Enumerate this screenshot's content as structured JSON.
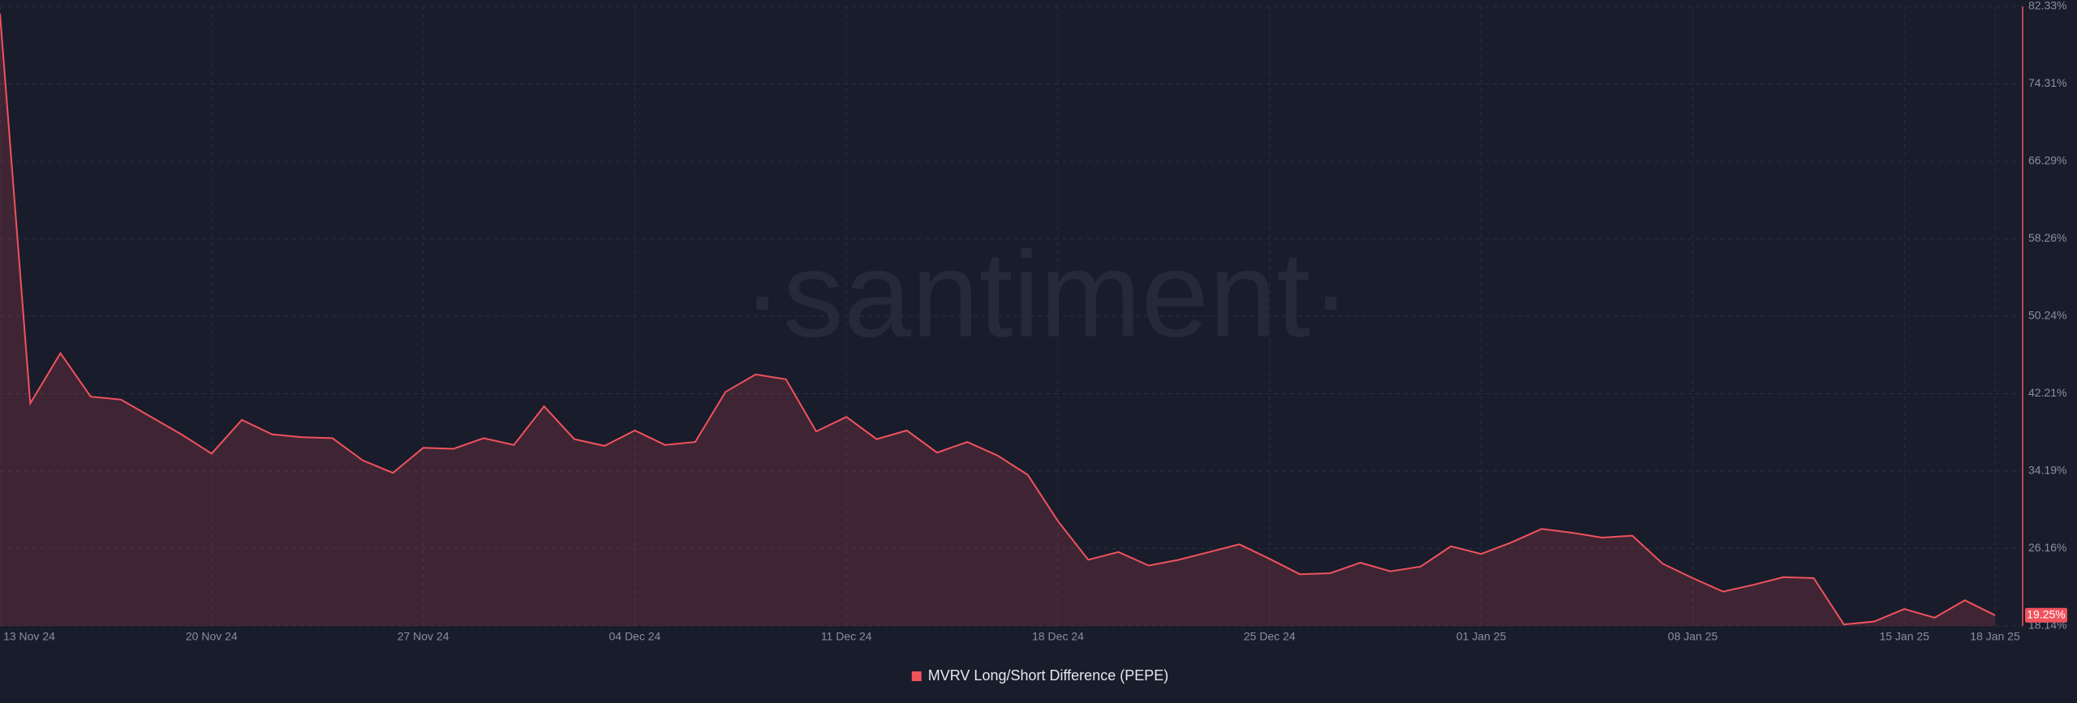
{
  "chart_data": {
    "type": "line",
    "watermark": "·santiment·",
    "x": [
      "2024-11-13",
      "2024-11-14",
      "2024-11-15",
      "2024-11-16",
      "2024-11-17",
      "2024-11-18",
      "2024-11-19",
      "2024-11-20",
      "2024-11-21",
      "2024-11-22",
      "2024-11-23",
      "2024-11-24",
      "2024-11-25",
      "2024-11-26",
      "2024-11-27",
      "2024-11-28",
      "2024-11-29",
      "2024-11-30",
      "2024-12-01",
      "2024-12-02",
      "2024-12-03",
      "2024-12-04",
      "2024-12-05",
      "2024-12-06",
      "2024-12-07",
      "2024-12-08",
      "2024-12-09",
      "2024-12-10",
      "2024-12-11",
      "2024-12-12",
      "2024-12-13",
      "2024-12-14",
      "2024-12-15",
      "2024-12-16",
      "2024-12-17",
      "2024-12-18",
      "2024-12-19",
      "2024-12-20",
      "2024-12-21",
      "2024-12-22",
      "2024-12-23",
      "2024-12-24",
      "2024-12-25",
      "2024-12-26",
      "2024-12-27",
      "2024-12-28",
      "2024-12-29",
      "2024-12-30",
      "2024-12-31",
      "2025-01-01",
      "2025-01-02",
      "2025-01-03",
      "2025-01-04",
      "2025-01-05",
      "2025-01-06",
      "2025-01-07",
      "2025-01-08",
      "2025-01-09",
      "2025-01-10",
      "2025-01-11",
      "2025-01-12",
      "2025-01-13",
      "2025-01-14",
      "2025-01-15",
      "2025-01-16",
      "2025-01-17",
      "2025-01-18"
    ],
    "series": [
      {
        "name": "MVRV Long/Short Difference (PEPE)",
        "color": "#f0525c",
        "values": [
          81.6,
          41.2,
          46.4,
          41.9,
          41.6,
          39.8,
          38.0,
          36.0,
          39.5,
          38.0,
          37.7,
          37.6,
          35.3,
          34.0,
          36.6,
          36.5,
          37.6,
          36.9,
          40.9,
          37.5,
          36.8,
          38.4,
          36.9,
          37.2,
          42.4,
          44.2,
          43.7,
          38.3,
          39.8,
          37.5,
          38.4,
          36.1,
          37.2,
          35.8,
          33.8,
          29.0,
          25.0,
          25.8,
          24.4,
          25.0,
          25.8,
          26.6,
          25.1,
          23.5,
          23.6,
          24.7,
          23.8,
          24.3,
          26.4,
          25.6,
          26.8,
          28.2,
          27.8,
          27.3,
          27.5,
          24.6,
          23.1,
          21.7,
          22.4,
          23.2,
          23.1,
          18.3,
          18.6,
          19.9,
          19.0,
          20.8,
          19.25
        ]
      }
    ],
    "current_value": {
      "value": 19.25,
      "label": "19.25%"
    },
    "xlim": [
      "2024-11-13",
      "2025-01-18"
    ],
    "xticks": [
      {
        "value": "2024-11-13",
        "label": "13 Nov 24"
      },
      {
        "value": "2024-11-20",
        "label": "20 Nov 24"
      },
      {
        "value": "2024-11-27",
        "label": "27 Nov 24"
      },
      {
        "value": "2024-12-04",
        "label": "04 Dec 24"
      },
      {
        "value": "2024-12-11",
        "label": "11 Dec 24"
      },
      {
        "value": "2024-12-18",
        "label": "18 Dec 24"
      },
      {
        "value": "2024-12-25",
        "label": "25 Dec 24"
      },
      {
        "value": "2025-01-01",
        "label": "01 Jan 25"
      },
      {
        "value": "2025-01-08",
        "label": "08 Jan 25"
      },
      {
        "value": "2025-01-15",
        "label": "15 Jan 25"
      },
      {
        "value": "2025-01-18",
        "label": "18 Jan 25"
      }
    ],
    "ylim": [
      18.14,
      82.33
    ],
    "yticks": [
      {
        "value": 18.14,
        "label": "18.14%"
      },
      {
        "value": 26.16,
        "label": "26.16%"
      },
      {
        "value": 34.19,
        "label": "34.19%"
      },
      {
        "value": 42.21,
        "label": "42.21%"
      },
      {
        "value": 50.24,
        "label": "50.24%"
      },
      {
        "value": 58.26,
        "label": "58.26%"
      },
      {
        "value": 66.29,
        "label": "66.29%"
      },
      {
        "value": 74.31,
        "label": "74.31%"
      },
      {
        "value": 82.33,
        "label": "82.33%"
      }
    ],
    "grid": true
  }
}
